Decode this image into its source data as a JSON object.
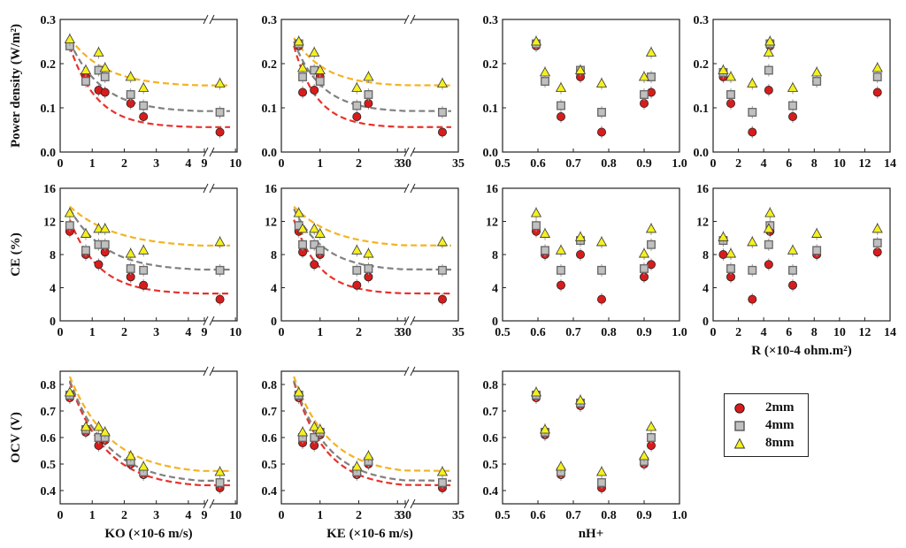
{
  "figure": {
    "legend": [
      {
        "label": "2mm",
        "marker": "circle",
        "color": "#d81c1c"
      },
      {
        "label": "4mm",
        "marker": "square",
        "color": "#c0c0c0"
      },
      {
        "label": "8mm",
        "marker": "triangle",
        "color": "#f4f020"
      }
    ],
    "colors": {
      "2mm": "#d81c1c",
      "4mm": "#c0c0c0",
      "8mm": "#f4f020",
      "fit_2mm": "#e8322b",
      "fit_4mm": "#808080",
      "fit_8mm": "#f5b21f"
    },
    "row_labels": {
      "power": "Power density (W/m²)",
      "ce": "CE (%)",
      "ocv": "OCV  (V)"
    },
    "x_labels": {
      "ko": "KO (×10-6 m/s)",
      "ke": "KE (×10-6 m/s)",
      "nh": "nH+",
      "r": "R (×10-4 ohm.m²)"
    }
  },
  "chart_data": [
    {
      "id": "power_ko",
      "type": "scatter",
      "ylabel": "Power density (W/m²)",
      "xlabel": "",
      "ylim": [
        0,
        0.3
      ],
      "yticks": [
        "0.0",
        "0.1",
        "0.2",
        "0.3"
      ],
      "xticks": [
        "0",
        "1",
        "2",
        "3",
        "4",
        "9",
        "10"
      ],
      "series": [
        {
          "name": "2mm",
          "x": [
            0.3,
            0.8,
            1.2,
            1.4,
            2.2,
            2.6,
            9.5
          ],
          "y": [
            0.24,
            0.17,
            0.14,
            0.135,
            0.11,
            0.08,
            0.045
          ]
        },
        {
          "name": "4mm",
          "x": [
            0.3,
            0.8,
            1.2,
            1.4,
            2.2,
            2.6,
            9.5
          ],
          "y": [
            0.24,
            0.16,
            0.185,
            0.17,
            0.13,
            0.105,
            0.09
          ]
        },
        {
          "name": "8mm",
          "x": [
            0.3,
            0.8,
            1.2,
            1.4,
            2.2,
            2.6,
            9.5
          ],
          "y": [
            0.255,
            0.185,
            0.225,
            0.19,
            0.17,
            0.145,
            0.155
          ]
        }
      ]
    },
    {
      "id": "power_ke",
      "type": "scatter",
      "ylabel": "",
      "xlabel": "",
      "ylim": [
        0,
        0.3
      ],
      "yticks": [
        "0.0",
        "0.1",
        "0.2",
        "0.3"
      ],
      "xticks": [
        "0",
        "1",
        "2",
        "3",
        "30",
        "35"
      ],
      "series": [
        {
          "name": "2mm",
          "x": [
            0.45,
            0.55,
            0.85,
            1.0,
            1.95,
            2.25,
            33.5
          ],
          "y": [
            0.24,
            0.135,
            0.14,
            0.17,
            0.08,
            0.11,
            0.045
          ]
        },
        {
          "name": "4mm",
          "x": [
            0.45,
            0.55,
            0.85,
            1.0,
            1.95,
            2.25,
            33.5
          ],
          "y": [
            0.245,
            0.17,
            0.185,
            0.16,
            0.105,
            0.13,
            0.09
          ]
        },
        {
          "name": "8mm",
          "x": [
            0.45,
            0.55,
            0.85,
            1.0,
            1.95,
            2.25,
            33.5
          ],
          "y": [
            0.25,
            0.19,
            0.225,
            0.185,
            0.145,
            0.17,
            0.155
          ]
        }
      ]
    },
    {
      "id": "power_nh",
      "type": "scatter",
      "ylabel": "",
      "xlabel": "",
      "ylim": [
        0,
        0.3
      ],
      "yticks": [
        "0.0",
        "0.1",
        "0.2",
        "0.3"
      ],
      "xticks": [
        "0.5",
        "0.6",
        "0.7",
        "0.8",
        "0.9",
        "1.0"
      ],
      "series": [
        {
          "name": "2mm",
          "x": [
            0.595,
            0.62,
            0.665,
            0.72,
            0.78,
            0.9,
            0.92
          ],
          "y": [
            0.24,
            0.16,
            0.08,
            0.17,
            0.045,
            0.11,
            0.135
          ]
        },
        {
          "name": "4mm",
          "x": [
            0.595,
            0.62,
            0.665,
            0.72,
            0.78,
            0.9,
            0.92
          ],
          "y": [
            0.245,
            0.16,
            0.105,
            0.185,
            0.09,
            0.13,
            0.17
          ]
        },
        {
          "name": "8mm",
          "x": [
            0.595,
            0.62,
            0.665,
            0.72,
            0.78,
            0.9,
            0.92
          ],
          "y": [
            0.25,
            0.18,
            0.145,
            0.185,
            0.155,
            0.17,
            0.225
          ]
        }
      ]
    },
    {
      "id": "power_r",
      "type": "scatter",
      "ylabel": "",
      "xlabel": "",
      "ylim": [
        0,
        0.3
      ],
      "yticks": [
        "0.0",
        "0.1",
        "0.2",
        "0.3"
      ],
      "xticks": [
        "0",
        "2",
        "4",
        "6",
        "8",
        "10",
        "12",
        "14"
      ],
      "series": [
        {
          "name": "2mm",
          "x": [
            0.8,
            1.4,
            3.1,
            4.4,
            4.5,
            6.3,
            8.2,
            13.0
          ],
          "y": [
            0.17,
            0.11,
            0.045,
            0.14,
            0.24,
            0.08,
            0.16,
            0.135
          ]
        },
        {
          "name": "4mm",
          "x": [
            0.8,
            1.4,
            3.1,
            4.4,
            4.5,
            6.3,
            8.2,
            13.0
          ],
          "y": [
            0.18,
            0.13,
            0.09,
            0.185,
            0.245,
            0.105,
            0.16,
            0.17
          ]
        },
        {
          "name": "8mm",
          "x": [
            0.8,
            1.4,
            3.1,
            4.4,
            4.5,
            6.3,
            8.2,
            13.0
          ],
          "y": [
            0.185,
            0.17,
            0.155,
            0.225,
            0.25,
            0.145,
            0.18,
            0.19
          ]
        }
      ]
    },
    {
      "id": "ce_ko",
      "type": "scatter",
      "ylabel": "CE (%)",
      "xlabel": "",
      "ylim": [
        0,
        16
      ],
      "yticks": [
        "0",
        "4",
        "8",
        "12",
        "16"
      ],
      "xticks": [
        "0",
        "1",
        "2",
        "3",
        "4",
        "9",
        "10"
      ],
      "series": [
        {
          "name": "2mm",
          "x": [
            0.3,
            0.8,
            1.2,
            1.4,
            2.2,
            2.6,
            9.5
          ],
          "y": [
            10.8,
            8.0,
            6.8,
            8.3,
            5.3,
            4.3,
            2.6
          ]
        },
        {
          "name": "4mm",
          "x": [
            0.3,
            0.8,
            1.2,
            1.4,
            2.2,
            2.6,
            9.5
          ],
          "y": [
            11.5,
            8.5,
            9.2,
            9.2,
            6.3,
            6.1,
            6.1
          ]
        },
        {
          "name": "8mm",
          "x": [
            0.3,
            0.8,
            1.2,
            1.4,
            2.2,
            2.6,
            9.5
          ],
          "y": [
            13.0,
            10.5,
            11.1,
            11.1,
            8.1,
            8.5,
            9.5
          ]
        }
      ]
    },
    {
      "id": "ce_ke",
      "type": "scatter",
      "ylabel": "",
      "xlabel": "",
      "ylim": [
        0,
        16
      ],
      "yticks": [
        "0",
        "4",
        "8",
        "12",
        "16"
      ],
      "xticks": [
        "0",
        "1",
        "2",
        "3",
        "30",
        "35"
      ],
      "series": [
        {
          "name": "2mm",
          "x": [
            0.45,
            0.55,
            0.85,
            1.0,
            1.95,
            2.25,
            33.5
          ],
          "y": [
            10.8,
            8.3,
            6.8,
            8.0,
            4.3,
            5.3,
            2.6
          ]
        },
        {
          "name": "4mm",
          "x": [
            0.45,
            0.55,
            0.85,
            1.0,
            1.95,
            2.25,
            33.5
          ],
          "y": [
            11.5,
            9.2,
            9.2,
            8.5,
            6.1,
            6.3,
            6.1
          ]
        },
        {
          "name": "8mm",
          "x": [
            0.45,
            0.55,
            0.85,
            1.0,
            1.95,
            2.25,
            33.5
          ],
          "y": [
            13.0,
            11.1,
            11.1,
            10.5,
            8.5,
            8.1,
            9.5
          ]
        }
      ]
    },
    {
      "id": "ce_nh",
      "type": "scatter",
      "ylabel": "",
      "xlabel": "",
      "ylim": [
        0,
        16
      ],
      "yticks": [
        "0",
        "4",
        "8",
        "12",
        "16"
      ],
      "xticks": [
        "0.5",
        "0.6",
        "0.7",
        "0.8",
        "0.9",
        "1.0"
      ],
      "series": [
        {
          "name": "2mm",
          "x": [
            0.595,
            0.62,
            0.665,
            0.72,
            0.78,
            0.9,
            0.92
          ],
          "y": [
            10.8,
            8.0,
            4.3,
            8.0,
            2.6,
            5.3,
            6.8
          ]
        },
        {
          "name": "4mm",
          "x": [
            0.595,
            0.62,
            0.665,
            0.72,
            0.78,
            0.9,
            0.92
          ],
          "y": [
            11.5,
            8.5,
            6.1,
            9.7,
            6.1,
            6.3,
            9.2
          ]
        },
        {
          "name": "8mm",
          "x": [
            0.595,
            0.62,
            0.665,
            0.72,
            0.78,
            0.9,
            0.92
          ],
          "y": [
            13.0,
            10.5,
            8.5,
            10.1,
            9.5,
            8.1,
            11.1
          ]
        }
      ]
    },
    {
      "id": "ce_r",
      "type": "scatter",
      "ylabel": "",
      "xlabel": "R (×10-4 ohm.m²)",
      "ylim": [
        0,
        16
      ],
      "yticks": [
        "0",
        "4",
        "8",
        "12",
        "16"
      ],
      "xticks": [
        "0",
        "2",
        "4",
        "6",
        "8",
        "10",
        "12",
        "14"
      ],
      "series": [
        {
          "name": "2mm",
          "x": [
            0.8,
            1.4,
            3.1,
            4.4,
            4.5,
            6.3,
            8.2,
            13.0
          ],
          "y": [
            8.0,
            5.3,
            2.6,
            6.8,
            10.8,
            4.3,
            8.0,
            8.3
          ]
        },
        {
          "name": "4mm",
          "x": [
            0.8,
            1.4,
            3.1,
            4.4,
            4.5,
            6.3,
            8.2,
            13.0
          ],
          "y": [
            9.7,
            6.3,
            6.1,
            9.2,
            11.5,
            6.1,
            8.5,
            9.4
          ]
        },
        {
          "name": "8mm",
          "x": [
            0.8,
            1.4,
            3.1,
            4.4,
            4.5,
            6.3,
            8.2,
            13.0
          ],
          "y": [
            10.1,
            8.1,
            9.5,
            11.1,
            13.0,
            8.5,
            10.5,
            11.1
          ]
        }
      ]
    },
    {
      "id": "ocv_ko",
      "type": "scatter",
      "ylabel": "OCV  (V)",
      "xlabel": "KO (×10-6 m/s)",
      "ylim": [
        0.35,
        0.85
      ],
      "yticks": [
        "0.4",
        "0.5",
        "0.6",
        "0.7",
        "0.8"
      ],
      "xticks": [
        "0",
        "1",
        "2",
        "3",
        "4",
        "9",
        "10"
      ],
      "series": [
        {
          "name": "2mm",
          "x": [
            0.3,
            0.8,
            1.2,
            1.4,
            2.2,
            2.6,
            9.5
          ],
          "y": [
            0.75,
            0.62,
            0.57,
            0.59,
            0.5,
            0.46,
            0.41
          ]
        },
        {
          "name": "4mm",
          "x": [
            0.3,
            0.8,
            1.2,
            1.4,
            2.2,
            2.6,
            9.5
          ],
          "y": [
            0.76,
            0.63,
            0.6,
            0.6,
            0.51,
            0.47,
            0.43
          ]
        },
        {
          "name": "8mm",
          "x": [
            0.3,
            0.8,
            1.2,
            1.4,
            2.2,
            2.6,
            9.5
          ],
          "y": [
            0.77,
            0.64,
            0.64,
            0.62,
            0.53,
            0.49,
            0.47
          ]
        }
      ]
    },
    {
      "id": "ocv_ke",
      "type": "scatter",
      "ylabel": "",
      "xlabel": "KE (×10-6 m/s)",
      "ylim": [
        0.35,
        0.85
      ],
      "yticks": [
        "0.4",
        "0.5",
        "0.6",
        "0.7",
        "0.8"
      ],
      "xticks": [
        "0",
        "1",
        "2",
        "3",
        "30",
        "35"
      ],
      "series": [
        {
          "name": "2mm",
          "x": [
            0.45,
            0.55,
            0.85,
            1.0,
            1.95,
            2.25,
            33.5
          ],
          "y": [
            0.75,
            0.58,
            0.57,
            0.61,
            0.46,
            0.5,
            0.41
          ]
        },
        {
          "name": "4mm",
          "x": [
            0.45,
            0.55,
            0.85,
            1.0,
            1.95,
            2.25,
            33.5
          ],
          "y": [
            0.76,
            0.6,
            0.6,
            0.62,
            0.47,
            0.51,
            0.43
          ]
        },
        {
          "name": "8mm",
          "x": [
            0.45,
            0.55,
            0.85,
            1.0,
            1.95,
            2.25,
            33.5
          ],
          "y": [
            0.77,
            0.62,
            0.64,
            0.63,
            0.49,
            0.53,
            0.47
          ]
        }
      ]
    },
    {
      "id": "ocv_nh",
      "type": "scatter",
      "ylabel": "",
      "xlabel": "nH+",
      "ylim": [
        0.35,
        0.85
      ],
      "yticks": [
        "0.4",
        "0.5",
        "0.6",
        "0.7",
        "0.8"
      ],
      "xticks": [
        "0.5",
        "0.6",
        "0.7",
        "0.8",
        "0.9",
        "1.0"
      ],
      "series": [
        {
          "name": "2mm",
          "x": [
            0.595,
            0.62,
            0.665,
            0.72,
            0.78,
            0.9,
            0.92
          ],
          "y": [
            0.75,
            0.61,
            0.46,
            0.72,
            0.41,
            0.5,
            0.57
          ]
        },
        {
          "name": "4mm",
          "x": [
            0.595,
            0.62,
            0.665,
            0.72,
            0.78,
            0.9,
            0.92
          ],
          "y": [
            0.76,
            0.62,
            0.47,
            0.73,
            0.43,
            0.51,
            0.6
          ]
        },
        {
          "name": "8mm",
          "x": [
            0.595,
            0.62,
            0.665,
            0.72,
            0.78,
            0.9,
            0.92
          ],
          "y": [
            0.77,
            0.63,
            0.49,
            0.74,
            0.47,
            0.53,
            0.64
          ]
        }
      ]
    }
  ]
}
